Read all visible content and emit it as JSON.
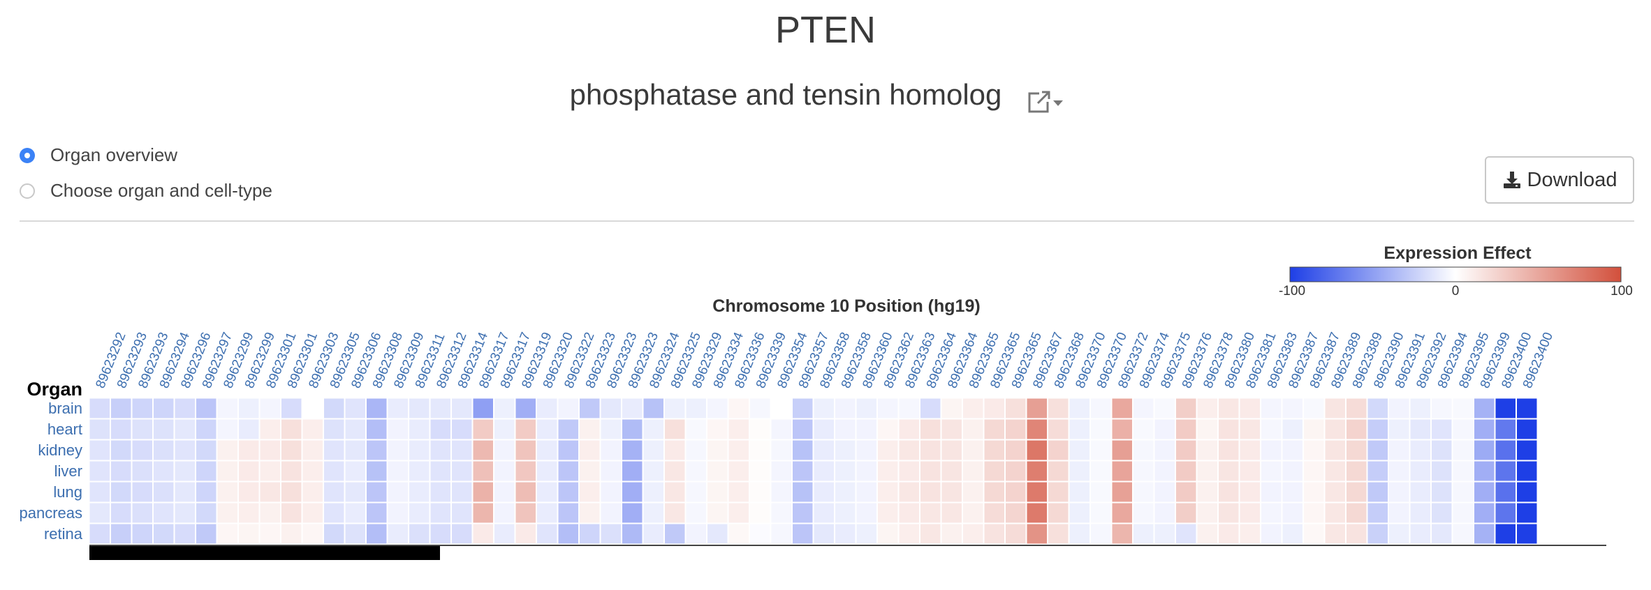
{
  "gene": {
    "symbol": "PTEN",
    "name": "phosphatase and tensin homolog"
  },
  "icons": {
    "external_link": "external-link-icon",
    "dropdown": "caret-down-icon",
    "download": "download-icon"
  },
  "view_options": {
    "overview_label": "Organ overview",
    "choose_label": "Choose organ and cell-type",
    "selected": "overview"
  },
  "download_label": "Download",
  "colors": {
    "negative": "#1e3fe6",
    "neutral": "#ffffff",
    "positive": "#d2503c",
    "link": "#3d6fb0"
  },
  "chart_data": {
    "type": "heatmap",
    "xlabel": "Chromosome 10 Position (hg19)",
    "ylabel": "Organ",
    "legend": {
      "title": "Expression Effect",
      "min_label": "-100",
      "mid_label": "0",
      "max_label": "100",
      "range": [
        -100,
        100
      ],
      "placement": "top-right"
    },
    "rows": [
      "brain",
      "heart",
      "kidney",
      "liver",
      "lung",
      "pancreas",
      "retina"
    ],
    "columns": [
      "89623292",
      "89623293",
      "89623293",
      "89623294",
      "89623296",
      "89623297",
      "89623299",
      "89623299",
      "89623301",
      "89623301",
      "89623303",
      "89623305",
      "89623306",
      "89623308",
      "89623309",
      "89623311",
      "89623312",
      "89623314",
      "89623317",
      "89623317",
      "89623319",
      "89623320",
      "89623322",
      "89623323",
      "89623323",
      "89623323",
      "89623324",
      "89623325",
      "89623329",
      "89623334",
      "89623336",
      "89623339",
      "89623354",
      "89623357",
      "89623358",
      "89623358",
      "89623360",
      "89623362",
      "89623363",
      "89623364",
      "89623364",
      "89623365",
      "89623365",
      "89623365",
      "89623367",
      "89623368",
      "89623370",
      "89623370",
      "89623372",
      "89623374",
      "89623375",
      "89623376",
      "89623378",
      "89623380",
      "89623381",
      "89623383",
      "89623387",
      "89623387",
      "89623389",
      "89623389",
      "89623390",
      "89623391",
      "89623392",
      "89623394",
      "89623395",
      "89623399",
      "89623400",
      "89623400"
    ],
    "values": [
      [
        -18,
        -25,
        -22,
        -22,
        -18,
        -30,
        -5,
        -8,
        -5,
        -18,
        0,
        -20,
        -14,
        -38,
        -10,
        -12,
        -12,
        -12,
        -50,
        -8,
        -42,
        -10,
        -6,
        -28,
        -12,
        -10,
        -32,
        -8,
        -8,
        -5,
        5,
        -4,
        0,
        -25,
        -8,
        -6,
        -8,
        -5,
        -4,
        -18,
        6,
        10,
        12,
        18,
        55,
        18,
        -8,
        -4,
        50,
        -5,
        -3,
        28,
        10,
        14,
        12,
        -5,
        -5,
        -3,
        15,
        20,
        -20,
        -6,
        -8,
        -4,
        -3,
        -40,
        -100,
        -100
      ],
      [
        -15,
        -18,
        -15,
        -15,
        -12,
        -22,
        -5,
        -10,
        10,
        18,
        10,
        -15,
        -12,
        -34,
        -6,
        -10,
        -18,
        -18,
        30,
        -8,
        30,
        -10,
        -28,
        8,
        -8,
        -35,
        -8,
        18,
        -3,
        5,
        10,
        2,
        -5,
        -30,
        -10,
        -6,
        -6,
        5,
        12,
        18,
        15,
        8,
        22,
        25,
        70,
        20,
        -8,
        -3,
        45,
        -3,
        -6,
        30,
        6,
        16,
        14,
        -4,
        -8,
        6,
        15,
        25,
        -26,
        -8,
        -12,
        -14,
        -4,
        -42,
        -70,
        -100
      ],
      [
        -14,
        -20,
        -18,
        -16,
        -14,
        -20,
        8,
        12,
        12,
        18,
        10,
        -14,
        -12,
        -30,
        -6,
        -10,
        -14,
        -14,
        40,
        -6,
        34,
        -10,
        -30,
        10,
        -6,
        -40,
        -8,
        12,
        -4,
        6,
        10,
        2,
        -4,
        -32,
        -10,
        -8,
        -6,
        10,
        14,
        16,
        15,
        8,
        22,
        25,
        78,
        25,
        -8,
        -3,
        55,
        -4,
        -6,
        30,
        8,
        16,
        12,
        -6,
        -6,
        5,
        15,
        22,
        -28,
        -6,
        -10,
        -15,
        -4,
        -44,
        -74,
        -100
      ],
      [
        -14,
        -18,
        -16,
        -14,
        -12,
        -22,
        8,
        12,
        10,
        16,
        10,
        -14,
        -10,
        -32,
        -6,
        -10,
        -14,
        -14,
        36,
        -6,
        32,
        -10,
        -30,
        8,
        -6,
        -42,
        -8,
        14,
        -4,
        6,
        10,
        2,
        -5,
        -30,
        -10,
        -8,
        -6,
        10,
        12,
        16,
        15,
        8,
        22,
        25,
        74,
        22,
        -8,
        -3,
        52,
        -4,
        -6,
        30,
        8,
        15,
        12,
        -5,
        -6,
        5,
        14,
        22,
        -26,
        -6,
        -10,
        -15,
        -4,
        -42,
        -72,
        -100
      ],
      [
        -14,
        -20,
        -18,
        -16,
        -12,
        -22,
        8,
        12,
        14,
        18,
        10,
        -14,
        -12,
        -30,
        -6,
        -10,
        -14,
        -14,
        44,
        -6,
        38,
        -10,
        -30,
        10,
        -6,
        -42,
        -8,
        14,
        -4,
        6,
        10,
        2,
        -5,
        -32,
        -10,
        -8,
        -6,
        10,
        14,
        16,
        15,
        8,
        22,
        25,
        76,
        22,
        -8,
        -3,
        54,
        -4,
        -6,
        30,
        8,
        16,
        12,
        -6,
        -6,
        5,
        14,
        22,
        -28,
        -6,
        -10,
        -15,
        -4,
        -42,
        -74,
        -100
      ],
      [
        -12,
        -18,
        -16,
        -14,
        -12,
        -20,
        8,
        10,
        8,
        16,
        10,
        -14,
        -10,
        -30,
        -6,
        -10,
        -14,
        -14,
        42,
        -6,
        34,
        -10,
        -30,
        8,
        -6,
        -42,
        -8,
        14,
        -4,
        6,
        10,
        2,
        -4,
        -30,
        -10,
        -8,
        -6,
        10,
        12,
        14,
        14,
        8,
        20,
        24,
        76,
        22,
        -8,
        -3,
        50,
        -4,
        -6,
        28,
        8,
        15,
        12,
        -5,
        -6,
        5,
        14,
        22,
        -26,
        -6,
        -10,
        -15,
        -4,
        -42,
        -72,
        -100
      ],
      [
        -18,
        -25,
        -22,
        -20,
        -18,
        -28,
        5,
        6,
        5,
        8,
        5,
        -20,
        -15,
        -34,
        -10,
        -16,
        -18,
        -18,
        12,
        -10,
        12,
        -14,
        -34,
        -22,
        -16,
        -36,
        -10,
        -28,
        -6,
        -12,
        4,
        -2,
        -4,
        -30,
        -12,
        -10,
        -8,
        6,
        10,
        14,
        8,
        10,
        16,
        20,
        62,
        18,
        -8,
        -4,
        42,
        -8,
        -8,
        -14,
        8,
        12,
        10,
        -6,
        -8,
        4,
        14,
        16,
        -24,
        -8,
        -10,
        -12,
        -4,
        -40,
        -100,
        -100
      ]
    ]
  }
}
